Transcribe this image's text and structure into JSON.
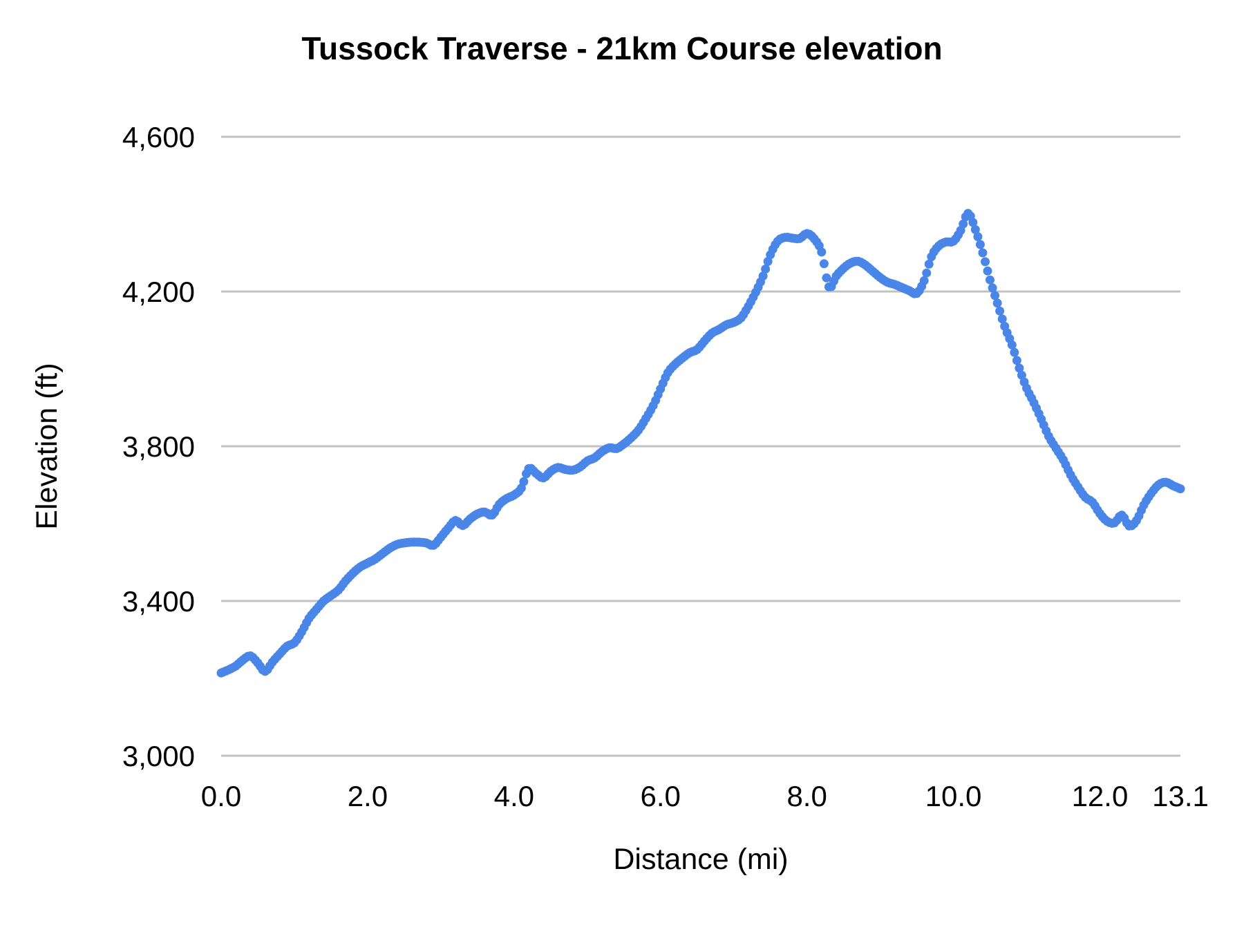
{
  "chart_data": {
    "type": "scatter",
    "marker": "circle",
    "title": "Tussock Traverse - 21km Course elevation",
    "xlabel": "Distance (mi)",
    "ylabel": "Elevation (ft)",
    "xlim": [
      0,
      13.1
    ],
    "ylim": [
      3000,
      4600
    ],
    "grid": "horizontal-only",
    "legend": "none",
    "series_name": "Course elevation",
    "series_color": "#4a86e8",
    "gridline_color": "#c2c2c2",
    "text_color": "#000000",
    "x_ticks": [
      {
        "value": 0.0,
        "label": "0.0"
      },
      {
        "value": 2.0,
        "label": "2.0"
      },
      {
        "value": 4.0,
        "label": "4.0"
      },
      {
        "value": 6.0,
        "label": "6.0"
      },
      {
        "value": 8.0,
        "label": "8.0"
      },
      {
        "value": 10.0,
        "label": "10.0"
      },
      {
        "value": 12.0,
        "label": "12.0"
      },
      {
        "value": 13.1,
        "label": "13.1"
      }
    ],
    "y_ticks": [
      {
        "value": 3000,
        "label": "3,000"
      },
      {
        "value": 3400,
        "label": "3,400"
      },
      {
        "value": 3800,
        "label": "3,800"
      },
      {
        "value": 4200,
        "label": "4,200"
      },
      {
        "value": 4600,
        "label": "4,600"
      }
    ],
    "x": [
      0.0,
      0.1,
      0.2,
      0.3,
      0.4,
      0.5,
      0.6,
      0.7,
      0.8,
      0.9,
      1.0,
      1.1,
      1.2,
      1.3,
      1.4,
      1.5,
      1.6,
      1.7,
      1.8,
      1.9,
      2.0,
      2.1,
      2.2,
      2.3,
      2.4,
      2.5,
      2.6,
      2.7,
      2.8,
      2.9,
      3.0,
      3.1,
      3.2,
      3.3,
      3.4,
      3.5,
      3.6,
      3.7,
      3.8,
      3.9,
      4.0,
      4.1,
      4.2,
      4.3,
      4.4,
      4.5,
      4.6,
      4.7,
      4.8,
      4.9,
      5.0,
      5.1,
      5.2,
      5.3,
      5.4,
      5.5,
      5.6,
      5.7,
      5.8,
      5.9,
      6.0,
      6.1,
      6.2,
      6.3,
      6.4,
      6.5,
      6.6,
      6.7,
      6.8,
      6.9,
      7.0,
      7.1,
      7.2,
      7.3,
      7.4,
      7.5,
      7.6,
      7.7,
      7.8,
      7.9,
      8.0,
      8.1,
      8.2,
      8.3,
      8.4,
      8.5,
      8.6,
      8.7,
      8.8,
      8.9,
      9.0,
      9.1,
      9.2,
      9.3,
      9.4,
      9.5,
      9.6,
      9.7,
      9.8,
      9.9,
      10.0,
      10.1,
      10.2,
      10.3,
      10.4,
      10.5,
      10.6,
      10.7,
      10.8,
      10.9,
      11.0,
      11.1,
      11.2,
      11.3,
      11.4,
      11.5,
      11.6,
      11.7,
      11.8,
      11.9,
      12.0,
      12.1,
      12.2,
      12.3,
      12.4,
      12.5,
      12.6,
      12.7,
      12.8,
      12.9,
      13.0,
      13.1
    ],
    "elevation_ft": [
      3214,
      3222,
      3232,
      3248,
      3258,
      3240,
      3218,
      3242,
      3263,
      3283,
      3292,
      3320,
      3355,
      3378,
      3400,
      3414,
      3428,
      3452,
      3472,
      3488,
      3498,
      3508,
      3522,
      3536,
      3546,
      3550,
      3552,
      3552,
      3550,
      3544,
      3565,
      3588,
      3608,
      3595,
      3612,
      3625,
      3630,
      3622,
      3650,
      3665,
      3674,
      3692,
      3742,
      3730,
      3718,
      3735,
      3745,
      3740,
      3738,
      3746,
      3762,
      3770,
      3786,
      3796,
      3794,
      3806,
      3822,
      3842,
      3872,
      3905,
      3948,
      3990,
      4012,
      4028,
      4042,
      4050,
      4072,
      4092,
      4102,
      4114,
      4120,
      4132,
      4162,
      4198,
      4240,
      4295,
      4330,
      4340,
      4338,
      4337,
      4350,
      4336,
      4302,
      4212,
      4240,
      4260,
      4274,
      4278,
      4268,
      4252,
      4236,
      4224,
      4218,
      4210,
      4202,
      4195,
      4228,
      4290,
      4318,
      4328,
      4330,
      4358,
      4402,
      4360,
      4300,
      4230,
      4170,
      4110,
      4062,
      4002,
      3950,
      3912,
      3870,
      3826,
      3795,
      3765,
      3726,
      3695,
      3668,
      3655,
      3626,
      3606,
      3602,
      3622,
      3594,
      3608,
      3648,
      3678,
      3700,
      3707,
      3698,
      3690
    ]
  }
}
